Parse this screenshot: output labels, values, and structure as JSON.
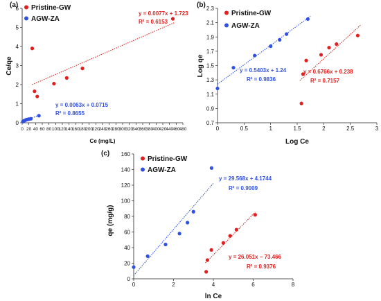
{
  "chart_data": [
    {
      "panel_label": "(a)",
      "type": "scatter",
      "xlabel": "Ce (mg/L)",
      "ylabel": "Ce/qe",
      "xlim": [
        0,
        480
      ],
      "ylim": [
        0,
        6
      ],
      "xticks": [
        0,
        20,
        40,
        60,
        80,
        100,
        120,
        140,
        160,
        180,
        200,
        220,
        240,
        260,
        280,
        300,
        320,
        340,
        360,
        380,
        400,
        420,
        440,
        460,
        480
      ],
      "yticks": [
        0,
        1,
        2,
        3,
        4,
        5,
        6
      ],
      "legend_position": "top-left",
      "series": [
        {
          "name": "Pristine-GW",
          "color": "#e02020",
          "points": [
            [
              30,
              3.9
            ],
            [
              37,
              1.65
            ],
            [
              45,
              1.38
            ],
            [
              95,
              2.05
            ],
            [
              133,
              2.35
            ],
            [
              180,
              2.85
            ],
            [
              450,
              5.45
            ]
          ],
          "fit_line": {
            "from": [
              30,
              2.0
            ],
            "to": [
              455,
              5.25
            ]
          },
          "equation": "y = 0.0077x + 1.723",
          "r2": "R² = 0.6153"
        },
        {
          "name": "AGW-ZA",
          "color": "#3050e0",
          "points": [
            [
              2,
              0.06
            ],
            [
              5,
              0.1
            ],
            [
              8,
              0.12
            ],
            [
              11,
              0.15
            ],
            [
              15,
              0.17
            ],
            [
              20,
              0.19
            ],
            [
              26,
              0.21
            ],
            [
              50,
              0.37
            ]
          ],
          "fit_line": {
            "from": [
              0,
              0.07
            ],
            "to": [
              52,
              0.4
            ]
          },
          "equation": "y = 0.0063x + 0.0715",
          "r2": "R² = 0.8655"
        }
      ]
    },
    {
      "panel_label": "(b)",
      "type": "scatter",
      "xlabel": "Log Ce",
      "ylabel": "Log qe",
      "xlim": [
        0,
        3
      ],
      "ylim": [
        0.7,
        2.3
      ],
      "xticks": [
        0,
        0.5,
        1,
        1.5,
        2,
        2.5,
        3
      ],
      "yticks": [
        0.7,
        0.9,
        1.1,
        1.3,
        1.5,
        1.7,
        1.9,
        2.1,
        2.3
      ],
      "legend_position": "top-left",
      "series": [
        {
          "name": "Pristine-GW",
          "color": "#e02020",
          "points": [
            [
              1.58,
              0.97
            ],
            [
              1.61,
              1.38
            ],
            [
              1.67,
              1.57
            ],
            [
              1.95,
              1.65
            ],
            [
              2.1,
              1.75
            ],
            [
              2.24,
              1.8
            ],
            [
              2.64,
              1.92
            ]
          ],
          "fit_line": {
            "from": [
              1.55,
              1.29
            ],
            "to": [
              2.7,
              2.07
            ]
          },
          "equation": "y = 0.6766x + 0.238",
          "r2": "R² = 0.7157"
        },
        {
          "name": "AGW-ZA",
          "color": "#3050e0",
          "points": [
            [
              0,
              1.18
            ],
            [
              0.3,
              1.47
            ],
            [
              0.7,
              1.64
            ],
            [
              1.0,
              1.77
            ],
            [
              1.17,
              1.86
            ],
            [
              1.3,
              1.94
            ],
            [
              1.7,
              2.15
            ]
          ],
          "fit_line": {
            "from": [
              0,
              1.24
            ],
            "to": [
              1.75,
              2.19
            ]
          },
          "equation": "y = 0.5403x + 1.24",
          "r2": "R² = 0.9836"
        }
      ]
    },
    {
      "panel_label": "(c)",
      "type": "scatter",
      "xlabel": "ln Ce",
      "ylabel": "qe (mg/g)",
      "xlim": [
        0,
        8
      ],
      "ylim": [
        0,
        160
      ],
      "xticks": [
        0,
        2,
        4,
        6,
        8
      ],
      "yticks": [
        0,
        20,
        40,
        60,
        80,
        100,
        120,
        140,
        160
      ],
      "legend_position": "top-left",
      "series": [
        {
          "name": "Pristine-GW",
          "color": "#e02020",
          "points": [
            [
              3.64,
              9
            ],
            [
              3.7,
              24
            ],
            [
              3.9,
              37
            ],
            [
              4.5,
              46
            ],
            [
              4.84,
              55
            ],
            [
              5.16,
              63
            ],
            [
              6.1,
              82
            ]
          ],
          "fit_line": {
            "from": [
              3.6,
              20.3
            ],
            "to": [
              6.1,
              85.5
            ]
          },
          "equation": "y = 26.051x − 73.466",
          "r2": "R² = 0.9376"
        },
        {
          "name": "AGW-ZA",
          "color": "#3050e0",
          "points": [
            [
              0,
              15
            ],
            [
              0.7,
              29
            ],
            [
              1.6,
              44
            ],
            [
              2.3,
              58
            ],
            [
              2.7,
              72
            ],
            [
              3.0,
              86
            ],
            [
              3.91,
              142
            ]
          ],
          "fit_line": {
            "from": [
              0,
              4.2
            ],
            "to": [
              4.0,
              122.5
            ]
          },
          "equation": "y = 29.568x + 4.1744",
          "r2": "R² = 0.9009"
        }
      ]
    }
  ]
}
